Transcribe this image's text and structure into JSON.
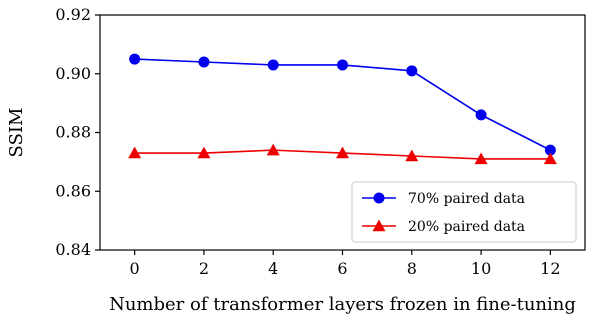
{
  "chart_data": {
    "type": "line",
    "title": "",
    "xlabel": "Number of transformer layers frozen in fine-tuning",
    "ylabel": "SSIM",
    "x": [
      0,
      2,
      4,
      6,
      8,
      10,
      12
    ],
    "xlim": [
      -1,
      13
    ],
    "ylim": [
      0.84,
      0.92
    ],
    "xticks": [
      0,
      2,
      4,
      6,
      8,
      10,
      12
    ],
    "yticks": [
      0.84,
      0.86,
      0.88,
      0.9,
      0.92
    ],
    "ytick_labels": [
      "0.84",
      "0.86",
      "0.88",
      "0.90",
      "0.92"
    ],
    "grid": false,
    "legend_position": "lower-right",
    "series": [
      {
        "name": "70% paired data",
        "color": "#0000ee",
        "marker": "circle",
        "values": [
          0.905,
          0.904,
          0.903,
          0.903,
          0.901,
          0.886,
          0.874
        ]
      },
      {
        "name": "20% paired data",
        "color": "#ee0000",
        "marker": "triangle",
        "values": [
          0.873,
          0.873,
          0.874,
          0.873,
          0.872,
          0.871,
          0.871
        ]
      }
    ]
  }
}
